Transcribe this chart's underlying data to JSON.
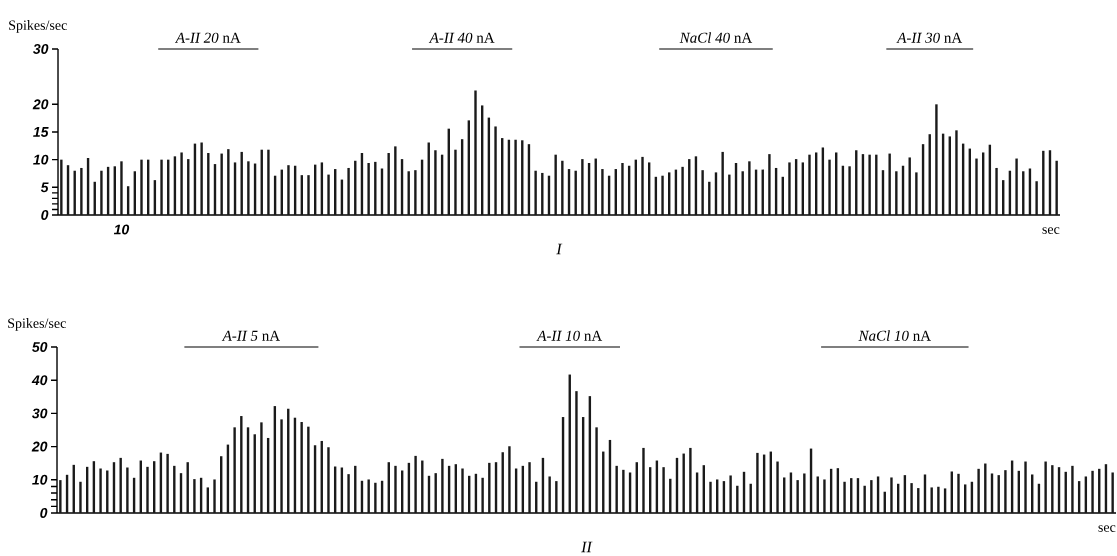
{
  "chart_data": [
    {
      "type": "bar",
      "ylabel": "Spikes/sec",
      "xlabel": "sec",
      "color": "#1a1a1a",
      "annotations": [
        "*A-II 20* nA",
        "*A-II 40* nA",
        "*NaCl 40* nA",
        "*A-II 30* nA",
        "I"
      ],
      "categories": [
        null,
        null,
        null,
        null,
        null,
        null,
        null,
        null,
        null,
        "10",
        null,
        null,
        null,
        null,
        null,
        null,
        null,
        null,
        null,
        null,
        null,
        null,
        null,
        null,
        null,
        null,
        null,
        null,
        null,
        null,
        null,
        null,
        null,
        null,
        null,
        null,
        null,
        null,
        null,
        null,
        null,
        null,
        null,
        null,
        null,
        null,
        null,
        null,
        null,
        null,
        null,
        null,
        null,
        null,
        null,
        null,
        null,
        null,
        null,
        null,
        null,
        null,
        null,
        null,
        null,
        null,
        null,
        null,
        null,
        null,
        null,
        null,
        null,
        null,
        null,
        null,
        null,
        null,
        null,
        null,
        null,
        null,
        null,
        null,
        null,
        null,
        null,
        null,
        null,
        null,
        null,
        null,
        null,
        null,
        null,
        null,
        null,
        null,
        null,
        null,
        null,
        null,
        null,
        null,
        null,
        null,
        null,
        null,
        null,
        null,
        null,
        null,
        null,
        null,
        null,
        null,
        null,
        null,
        null,
        null,
        null,
        null,
        null,
        null,
        null,
        null,
        null,
        null,
        null,
        null,
        null,
        null,
        null,
        null,
        null,
        null,
        null,
        null,
        null,
        null,
        null,
        null,
        null,
        null,
        null,
        null,
        null,
        null,
        null,
        null
      ],
      "values": [
        10,
        9,
        8,
        8.5,
        10.3,
        6,
        8,
        8.7,
        8.8,
        9.7,
        5.2,
        7.9,
        10,
        10,
        6.3,
        10,
        10,
        10.6,
        11.3,
        10.1,
        12.9,
        13.1,
        11.2,
        9.2,
        11.1,
        11.9,
        9.5,
        11.4,
        9.7,
        9.3,
        11.8,
        11.8,
        7.1,
        8.2,
        9,
        8.9,
        7.2,
        7.2,
        9.1,
        9.5,
        7.3,
        8.3,
        6.4,
        8.5,
        9.8,
        11.2,
        9.4,
        9.6,
        8.4,
        11.2,
        12.4,
        10.1,
        7.9,
        8.1,
        10,
        13.1,
        11.7,
        10.9,
        15.6,
        11.8,
        13.7,
        17.1,
        22.5,
        19.8,
        17.6,
        16,
        13.9,
        13.6,
        13.6,
        13.5,
        12.8,
        8,
        7.6,
        7.1,
        10.9,
        9.8,
        8.3,
        8,
        10.1,
        9.4,
        10.2,
        8.3,
        7.1,
        8.3,
        9.4,
        8.9,
        10,
        10.5,
        9.5,
        6.9,
        7.1,
        7.7,
        8.2,
        8.7,
        10.1,
        10.6,
        8.1,
        6,
        7.7,
        11.4,
        7.3,
        9.4,
        7.9,
        9.7,
        8.2,
        8.2,
        11,
        8.5,
        6.9,
        9.5,
        10.1,
        9.5,
        10.9,
        11.3,
        12.2,
        10,
        11.3,
        8.9,
        8.8,
        11.7,
        11,
        10.9,
        10.9,
        8.1,
        11.1,
        7.9,
        8.9,
        10.4,
        7.7,
        12.8,
        14.6,
        20,
        14.7,
        14.2,
        15.3,
        12.9,
        12,
        10.2,
        11.3,
        12.7,
        8.5,
        6.3,
        8,
        10.2,
        7.9,
        8.4,
        6.1,
        11.6,
        11.7,
        9.8
      ],
      "ylim": [
        0,
        30
      ],
      "yticks": [
        0,
        {
          "value": 1,
          "label": null
        },
        {
          "value": 2,
          "label": null
        },
        {
          "value": 3,
          "label": null
        },
        {
          "value": 4,
          "label": null
        },
        5,
        10,
        15,
        20,
        30
      ]
    },
    {
      "type": "bar",
      "ylabel": "Spikes/sec",
      "xlabel": "sec",
      "color": "#1a1a1a",
      "annotations": [
        "*A-II 5* nA",
        "*A-II 10* nA",
        "*NaCl 10* nA",
        "II"
      ],
      "tick_labels": "y",
      "categories": [
        null,
        null,
        null,
        null,
        null,
        null,
        null,
        null,
        null,
        null,
        null,
        null,
        null,
        null,
        null,
        null,
        null,
        null,
        null,
        null,
        null,
        null,
        null,
        null,
        null,
        null,
        null,
        null,
        null,
        null,
        null,
        null,
        null,
        null,
        null,
        null,
        null,
        null,
        null,
        null,
        null,
        null,
        null,
        null,
        null,
        null,
        null,
        null,
        null,
        null,
        null,
        null,
        null,
        null,
        null,
        null,
        null,
        null,
        null,
        null,
        null,
        null,
        null,
        null,
        null,
        null,
        null,
        null,
        null,
        null,
        null,
        null,
        null,
        null,
        null,
        null,
        null,
        null,
        null,
        null,
        null,
        null,
        null,
        null,
        null,
        null,
        null,
        null,
        null,
        null,
        null,
        null,
        null,
        null,
        null,
        null,
        null,
        null,
        null,
        null,
        null,
        null,
        null,
        null,
        null,
        null,
        null,
        null,
        null,
        null,
        null,
        null,
        null,
        null,
        null,
        null,
        null,
        null,
        null,
        null,
        null,
        null,
        null,
        null,
        null,
        null,
        null,
        null,
        null,
        null,
        null,
        null,
        null,
        null,
        null,
        null,
        null,
        null,
        null,
        null,
        null,
        null,
        null,
        null,
        null,
        null,
        null,
        null,
        null,
        null,
        null,
        null,
        null,
        null,
        null,
        null,
        null,
        null
      ],
      "values": [
        9.9,
        11.5,
        14.5,
        9.4,
        13.9,
        15.6,
        13.4,
        12.8,
        15.3,
        16.6,
        13.7,
        10.6,
        15.8,
        13.9,
        15.6,
        18.2,
        17.8,
        14.2,
        12,
        15.3,
        10.2,
        10.6,
        7.7,
        10.1,
        17.1,
        20.6,
        25.8,
        29.2,
        25.8,
        23.7,
        27.3,
        22.6,
        32.2,
        28.2,
        31.4,
        28.7,
        27.4,
        26,
        20.4,
        21.7,
        19.8,
        14,
        13.7,
        11.7,
        14.2,
        9.7,
        10.1,
        9.1,
        9.7,
        15.3,
        14.2,
        12.8,
        15.1,
        17.2,
        15.8,
        11.2,
        12,
        16.3,
        14.2,
        14.7,
        13.4,
        11.2,
        11.8,
        10.6,
        15.1,
        15.3,
        18.3,
        20.1,
        13.4,
        14.2,
        15.3,
        9.4,
        16.6,
        11,
        9.6,
        28.9,
        41.7,
        36.7,
        28.9,
        35.2,
        25.8,
        18.5,
        22,
        14.2,
        13,
        12.2,
        15.3,
        19.6,
        13.8,
        15.8,
        13.8,
        10.3,
        16.6,
        17.9,
        19.6,
        12.2,
        14.4,
        9.4,
        10.1,
        9.6,
        11.3,
        8.2,
        12.4,
        8.8,
        18.1,
        17.6,
        18.5,
        15.5,
        10.7,
        12.2,
        9.9,
        11.9,
        19.4,
        11,
        10.1,
        13.3,
        13.5,
        9.4,
        10.5,
        10.5,
        8.2,
        9.9,
        11,
        6.4,
        10.7,
        8.8,
        11.4,
        9,
        7.5,
        11.6,
        7.7,
        7.9,
        7.4,
        12.5,
        11.8,
        8.6,
        9.4,
        13.3,
        14.9,
        11.9,
        11.4,
        12.9,
        15.8,
        12.7,
        15.5,
        11.6,
        8.8,
        15.5,
        14.4,
        13.8,
        12.4,
        14.2,
        9.6,
        11,
        12.7,
        13.3,
        14.7,
        12.2
      ],
      "ylim": [
        0,
        50
      ],
      "yticks": [
        0,
        {
          "value": 2,
          "label": null
        },
        {
          "value": 4,
          "label": null
        },
        {
          "value": 6,
          "label": null
        },
        {
          "value": 8,
          "label": null
        },
        10,
        20,
        30,
        40,
        50
      ]
    }
  ]
}
